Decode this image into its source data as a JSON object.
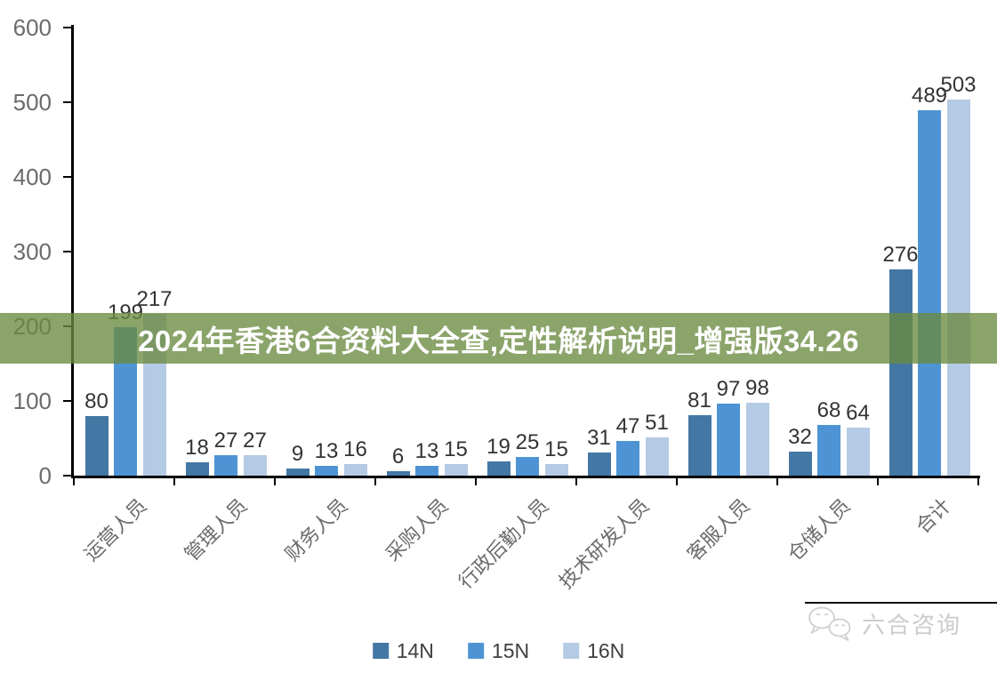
{
  "banner": {
    "text": "2024年香港6合资料大全查,定性解析说明_增强版34.26",
    "bg_color": "#6A8B40",
    "text_color": "#FFFFFF"
  },
  "chart_data": {
    "type": "bar",
    "title": "",
    "xlabel": "",
    "ylabel": "",
    "ylim": [
      0,
      600
    ],
    "yticks": [
      0,
      100,
      200,
      300,
      400,
      500,
      600
    ],
    "grid": false,
    "legend_position": "bottom",
    "categories": [
      "运营人员",
      "管理人员",
      "财务人员",
      "采购人员",
      "行政后勤人员",
      "技术研发人员",
      "客服人员",
      "仓储人员",
      "合计"
    ],
    "series": [
      {
        "name": "14N",
        "color": "#4377A4",
        "values": [
          80,
          18,
          9,
          6,
          19,
          31,
          81,
          32,
          276
        ]
      },
      {
        "name": "15N",
        "color": "#4E94D4",
        "values": [
          199,
          27,
          13,
          13,
          25,
          47,
          97,
          68,
          489
        ]
      },
      {
        "name": "16N",
        "color": "#B5CAE4",
        "values": [
          217,
          27,
          16,
          15,
          15,
          51,
          98,
          64,
          503
        ]
      }
    ]
  },
  "watermark": {
    "text": "六合咨询",
    "icon": "wechat-bubbles-icon",
    "color": "#CCCCCC"
  },
  "colors": {
    "axis": "#000000",
    "tick_label": "#6B6B6B",
    "data_label": "#333333"
  }
}
